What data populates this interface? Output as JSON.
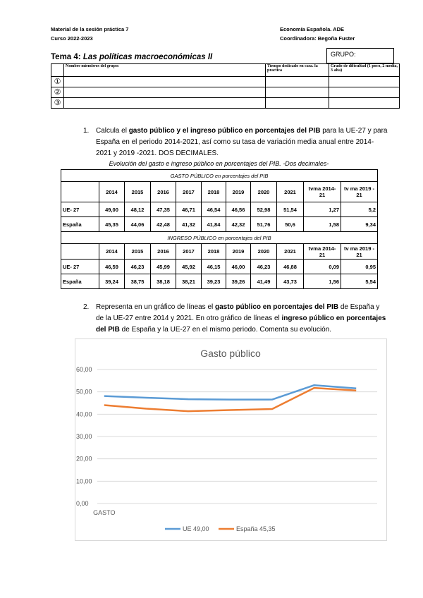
{
  "header": {
    "left": [
      "Material de la sesión práctica 7",
      "Curso 2022-2023"
    ],
    "right": [
      "Economía Española. ADE",
      "Coordinadora: Begoña Fuster"
    ]
  },
  "title": {
    "label": "Tema 4:",
    "text": "Las políticas macroeconómicas II"
  },
  "group_label": "GRUPO:",
  "group_table": {
    "headers": [
      "Nombre miembros del grupo:",
      "Tiempo dedicado en casa. la practica",
      "Grado de dificultad (1 poco, 2 media, 3 alta)"
    ],
    "rows": [
      "①",
      "②",
      "③"
    ]
  },
  "questions": [
    {
      "number": "1.",
      "segments": [
        {
          "text": "Calcula el ",
          "bold": false
        },
        {
          "text": "gasto público y el ingreso público en porcentajes del PIB",
          "bold": true
        },
        {
          "text": " para la UE-27 y para España en el periodo 2014-2021, así como su tasa de variación media anual entre 2014-2021 y 2019 -2021.  DOS DECIMALES.",
          "bold": false
        }
      ]
    },
    {
      "number": "2.",
      "segments": [
        {
          "text": "Representa en un gráfico de líneas el ",
          "bold": false
        },
        {
          "text": "gasto público en porcentajes del PIB",
          "bold": true
        },
        {
          "text": " de España y de la UE-27 entre 2014 y 2021. En otro gráfico de líneas el ",
          "bold": false
        },
        {
          "text": "ingreso público en porcentajes del PIB",
          "bold": true
        },
        {
          "text": " de España y la UE-27 en el mismo periodo. Comenta su evolución.",
          "bold": false
        }
      ]
    }
  ],
  "table": {
    "caption": "Evolución del gasto e ingreso público en porcentajes del PIB. -Dos decimales-",
    "sections": [
      {
        "title": "GASTO PÚBLICO  en porcentajes del PIB",
        "columns": [
          "2014",
          "2015",
          "2016",
          "2017",
          "2018",
          "2019",
          "2020",
          "2021",
          "tvma 2014- 21",
          "tv ma 2019 - 21"
        ],
        "rows": [
          {
            "label": "UE- 27",
            "cells": [
              "49,00",
              "48,12",
              "47,35",
              "46,71",
              "46,54",
              "46,56",
              "52,98",
              "51,54",
              "1,27",
              "5,2"
            ]
          },
          {
            "label": "España",
            "cells": [
              "45,35",
              "44,06",
              "42,48",
              "41,32",
              "41,84",
              "42,32",
              "51,76",
              "50,6",
              "1,58",
              "9,34"
            ]
          }
        ]
      },
      {
        "title": "INGRESO PÚBLICO en porcentajes del PIB",
        "columns": [
          "2014",
          "2015",
          "2016",
          "2017",
          "2018",
          "2019",
          "2020",
          "2021",
          "tvma 2014- 21",
          "tv ma 2019 - 21"
        ],
        "rows": [
          {
            "label": "UE- 27",
            "cells": [
              "46,59",
              "46,23",
              "45,99",
              "45,92",
              "46,15",
              "46,00",
              "46,23",
              "46,88",
              "0,09",
              "0,95"
            ]
          },
          {
            "label": "España",
            "cells": [
              "39,24",
              "38,75",
              "38,18",
              "38,21",
              "39,23",
              "39,26",
              "41,49",
              "43,73",
              "1,56",
              "5,54"
            ]
          }
        ]
      }
    ]
  },
  "chart_data": {
    "type": "line",
    "title": "Gasto público",
    "categories": [
      "GASTO",
      null,
      null,
      null,
      null,
      null,
      null
    ],
    "series": [
      {
        "name": "UE 49,00",
        "color": "#5b9bd5",
        "values": [
          48.12,
          47.35,
          46.71,
          46.54,
          46.56,
          52.98,
          51.54
        ]
      },
      {
        "name": "España 45,35",
        "color": "#ed7d31",
        "values": [
          44.06,
          42.48,
          41.32,
          41.84,
          42.32,
          51.76,
          50.6
        ]
      }
    ],
    "ylim": [
      0,
      60
    ],
    "yticks": [
      {
        "value": 0,
        "label": "0,00"
      },
      {
        "value": 10,
        "label": "10,00"
      },
      {
        "value": 20,
        "label": "20,00"
      },
      {
        "value": 30,
        "label": "30,00"
      },
      {
        "value": 40,
        "label": "40,00"
      },
      {
        "value": 50,
        "label": "50,00"
      },
      {
        "value": 60,
        "label": "60,00"
      }
    ],
    "grid": true,
    "legend": "bottom"
  }
}
